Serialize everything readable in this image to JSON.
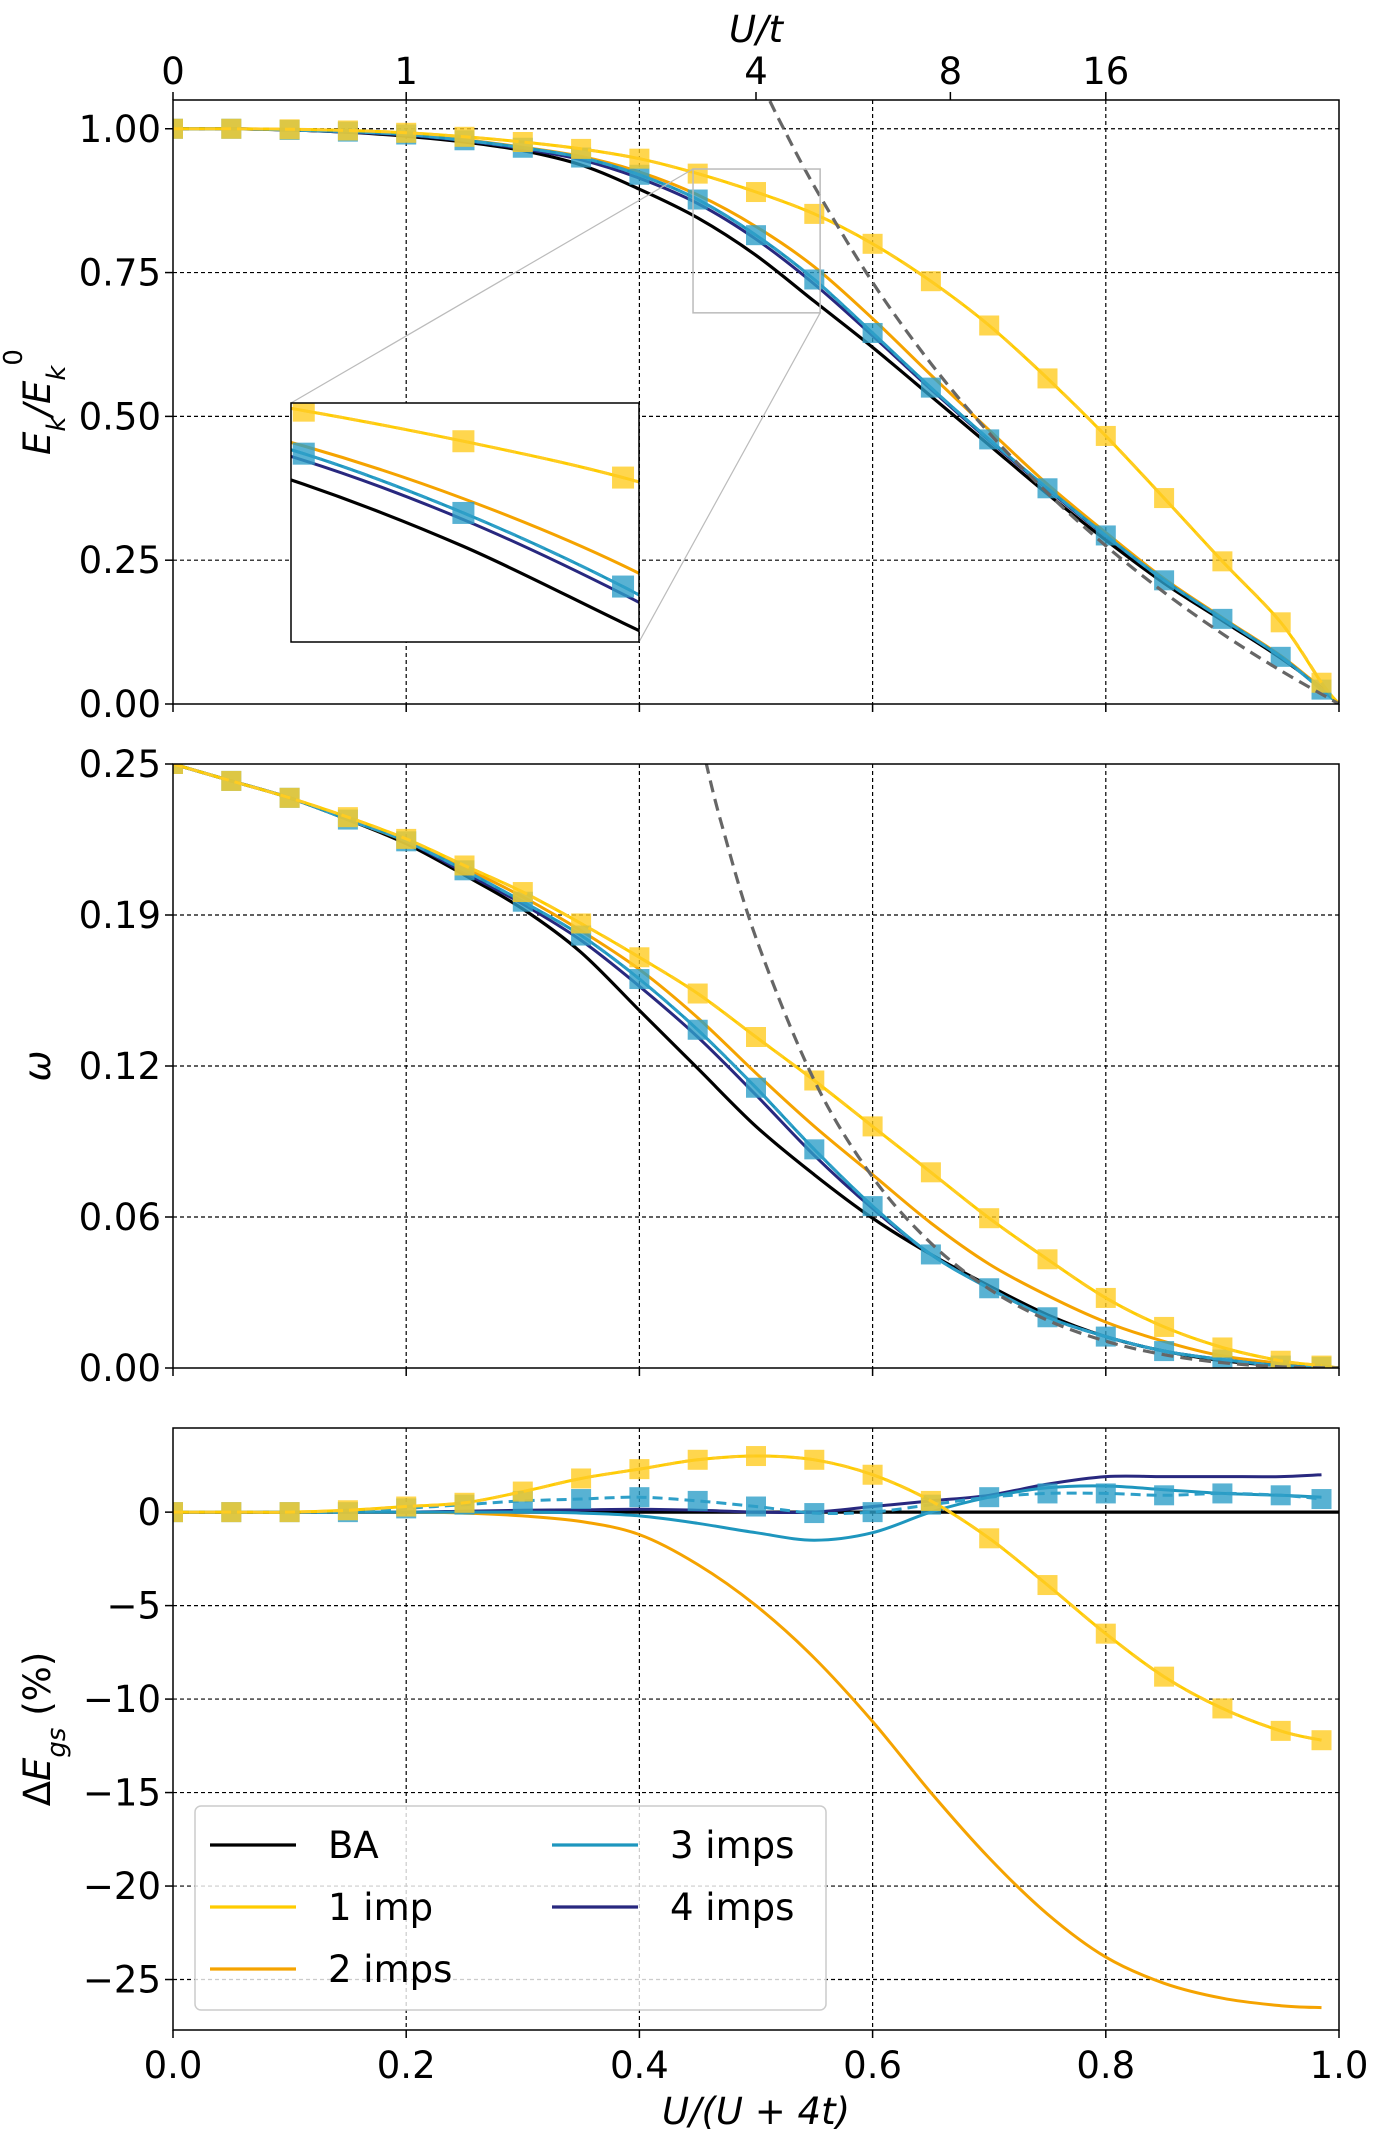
{
  "colors": {
    "BA": "#000000",
    "1 imp": "#FFCC00",
    "2 imps": "#F5A300",
    "3 imps": "#1E96BE",
    "4 imps": "#28287F",
    "marker_yellow": "#FFCC22",
    "marker_teal": "#2E9FC8",
    "asymptote": "#666666"
  },
  "legend": {
    "placement": "lower-left",
    "columns": 2,
    "entries": [
      "BA",
      "1 imp",
      "2 imps",
      "3 imps",
      "4 imps"
    ]
  },
  "top_axis": {
    "label": "U/t",
    "ticks": [
      0,
      0.2,
      0.5,
      0.6667,
      0.8
    ],
    "tick_labels": [
      "0",
      "1",
      "4",
      "8",
      "16"
    ]
  },
  "chart_data": [
    {
      "type": "line",
      "ylabel": "E_k/E_k^0",
      "xlim": [
        0,
        1
      ],
      "ylim": [
        0,
        1.05
      ],
      "grid": true,
      "yticks": [
        0,
        0.25,
        0.5,
        0.75,
        1.0
      ],
      "ytick_labels": [
        "0.00",
        "0.25",
        "0.50",
        "0.75",
        "1.00"
      ],
      "x": [
        0,
        0.05,
        0.1,
        0.15,
        0.2,
        0.25,
        0.3,
        0.35,
        0.4,
        0.45,
        0.5,
        0.55,
        0.6,
        0.65,
        0.7,
        0.75,
        0.8,
        0.85,
        0.9,
        0.95,
        0.985,
        1.0
      ],
      "series": [
        {
          "name": "BA",
          "style": "solid",
          "values": [
            1,
            1,
            0.998,
            0.994,
            0.987,
            0.977,
            0.962,
            0.937,
            0.895,
            0.845,
            0.78,
            0.7,
            0.62,
            0.535,
            0.45,
            0.365,
            0.285,
            0.21,
            0.145,
            0.08,
            0.028,
            0
          ]
        },
        {
          "name": "2 imps",
          "style": "solid",
          "values": [
            1,
            1,
            0.998,
            0.995,
            0.99,
            0.981,
            0.968,
            0.952,
            0.925,
            0.885,
            0.83,
            0.76,
            0.67,
            0.572,
            0.476,
            0.382,
            0.298,
            0.218,
            0.15,
            0.084,
            0.027,
            0
          ]
        },
        {
          "name": "4 imps",
          "style": "solid",
          "values": [
            1,
            1,
            0.998,
            0.994,
            0.989,
            0.979,
            0.965,
            0.946,
            0.914,
            0.87,
            0.808,
            0.73,
            0.64,
            0.547,
            0.458,
            0.373,
            0.292,
            0.215,
            0.148,
            0.082,
            0.025,
            0
          ]
        },
        {
          "name": "3 imps",
          "style": "solid",
          "values": [
            1,
            1,
            0.998,
            0.995,
            0.99,
            0.98,
            0.967,
            0.95,
            0.92,
            0.877,
            0.815,
            0.738,
            0.645,
            0.55,
            0.46,
            0.375,
            0.293,
            0.215,
            0.148,
            0.082,
            0.025,
            0
          ]
        },
        {
          "name": "1 imp",
          "style": "solid",
          "values": [
            1,
            1,
            0.999,
            0.997,
            0.993,
            0.986,
            0.977,
            0.965,
            0.948,
            0.922,
            0.89,
            0.852,
            0.8,
            0.735,
            0.658,
            0.566,
            0.466,
            0.358,
            0.248,
            0.142,
            0.037,
            0
          ]
        },
        {
          "style": "dashed-square",
          "color_key": "marker_teal",
          "values": [
            1,
            1,
            0.998,
            0.995,
            0.99,
            0.98,
            0.967,
            0.95,
            0.92,
            0.877,
            0.815,
            0.738,
            0.645,
            0.55,
            0.46,
            0.375,
            0.293,
            0.215,
            0.148,
            0.082,
            0.025,
            null
          ]
        },
        {
          "style": "dashed-square",
          "color_key": "marker_yellow",
          "values": [
            1,
            1,
            0.999,
            0.997,
            0.993,
            0.986,
            0.977,
            0.965,
            0.948,
            0.922,
            0.89,
            0.852,
            0.8,
            0.735,
            0.658,
            0.566,
            0.466,
            0.358,
            0.248,
            0.142,
            0.037,
            null
          ]
        }
      ],
      "asymptote": {
        "x": [
          0.505,
          0.52,
          0.55,
          0.6,
          0.65,
          0.7,
          0.75,
          0.8,
          0.85,
          0.9,
          0.95,
          1.0
        ],
        "values": [
          1.078,
          1.015,
          0.9,
          0.733,
          0.592,
          0.471,
          0.367,
          0.275,
          0.194,
          0.122,
          0.058,
          0
        ]
      },
      "inset": {
        "xlim": [
          0.446,
          0.555
        ],
        "ylim": [
          0.68,
          0.93
        ]
      }
    },
    {
      "type": "line",
      "ylabel": "ω",
      "xlim": [
        0,
        1
      ],
      "ylim": [
        0,
        0.25
      ],
      "grid": true,
      "yticks": [
        0,
        0.0625,
        0.125,
        0.1875,
        0.25
      ],
      "ytick_labels": [
        "0.00",
        "0.06",
        "0.12",
        "0.19",
        "0.25"
      ],
      "x": [
        0,
        0.05,
        0.1,
        0.15,
        0.2,
        0.25,
        0.3,
        0.35,
        0.4,
        0.45,
        0.5,
        0.55,
        0.6,
        0.65,
        0.7,
        0.75,
        0.8,
        0.85,
        0.9,
        0.95,
        0.985,
        1.0
      ],
      "series": [
        {
          "name": "BA",
          "style": "solid",
          "values": [
            0.25,
            0.243,
            0.236,
            0.227,
            0.217,
            0.204,
            0.19,
            0.172,
            0.148,
            0.124,
            0.1,
            0.08,
            0.062,
            0.047,
            0.034,
            0.022,
            0.013,
            0.007,
            0.003,
            0.001,
            0.0003,
            0
          ]
        },
        {
          "name": "2 imps",
          "style": "solid",
          "values": [
            0.25,
            0.243,
            0.236,
            0.227,
            0.218,
            0.207,
            0.195,
            0.181,
            0.165,
            0.145,
            0.122,
            0.1,
            0.08,
            0.06,
            0.043,
            0.03,
            0.019,
            0.011,
            0.005,
            0.002,
            0.0006,
            0
          ]
        },
        {
          "name": "4 imps",
          "style": "solid",
          "values": [
            0.25,
            0.243,
            0.236,
            0.227,
            0.218,
            0.205,
            0.192,
            0.177,
            0.158,
            0.137,
            0.113,
            0.088,
            0.066,
            0.047,
            0.033,
            0.021,
            0.013,
            0.007,
            0.0035,
            0.001,
            0.0005,
            0
          ]
        },
        {
          "name": "3 imps",
          "style": "solid",
          "values": [
            0.25,
            0.243,
            0.236,
            0.227,
            0.218,
            0.206,
            0.193,
            0.179,
            0.161,
            0.14,
            0.116,
            0.0905,
            0.067,
            0.047,
            0.033,
            0.021,
            0.013,
            0.007,
            0.0035,
            0.001,
            0.0005,
            0
          ]
        },
        {
          "name": "1 imp",
          "style": "solid",
          "values": [
            0.25,
            0.243,
            0.236,
            0.228,
            0.219,
            0.208,
            0.197,
            0.184,
            0.17,
            0.155,
            0.137,
            0.119,
            0.1,
            0.081,
            0.062,
            0.045,
            0.029,
            0.017,
            0.0085,
            0.003,
            0.001,
            0
          ]
        },
        {
          "style": "dashed-square",
          "color_key": "marker_teal",
          "values": [
            0.25,
            0.243,
            0.236,
            0.227,
            0.218,
            0.206,
            0.193,
            0.179,
            0.161,
            0.14,
            0.116,
            0.0905,
            0.067,
            0.047,
            0.033,
            0.021,
            0.013,
            0.007,
            0.0035,
            0.001,
            0.0005,
            null
          ]
        },
        {
          "style": "dashed-square",
          "color_key": "marker_yellow",
          "values": [
            0.25,
            0.243,
            0.236,
            0.228,
            0.219,
            0.208,
            0.197,
            0.184,
            0.17,
            0.155,
            0.137,
            0.119,
            0.1,
            0.081,
            0.062,
            0.045,
            0.029,
            0.017,
            0.0085,
            0.003,
            0.001,
            null
          ]
        }
      ],
      "asymptote": {
        "x": [
          0.457,
          0.47,
          0.5,
          0.55,
          0.6,
          0.65,
          0.7,
          0.75,
          0.8,
          0.85,
          0.9,
          0.95,
          1.0
        ],
        "values": [
          0.2508,
          0.226,
          0.178,
          0.119,
          0.079,
          0.0517,
          0.0327,
          0.0198,
          0.0111,
          0.0055,
          0.0022,
          0.0005,
          0
        ]
      }
    },
    {
      "type": "line",
      "ylabel": "ΔE_gs (%)",
      "xlabel": "U/(U + 4t)",
      "xlim": [
        0,
        1
      ],
      "ylim": [
        -27.7,
        4.5
      ],
      "grid": true,
      "yticks": [
        0,
        -5,
        -10,
        -15,
        -20,
        -25
      ],
      "ytick_labels": [
        "0",
        "−5",
        "−10",
        "−15",
        "−20",
        "−25"
      ],
      "xticks": [
        0,
        0.2,
        0.4,
        0.6,
        0.8,
        1.0
      ],
      "xtick_labels": [
        "0.0",
        "0.2",
        "0.4",
        "0.6",
        "0.8",
        "1.0"
      ],
      "x": [
        0,
        0.05,
        0.1,
        0.15,
        0.2,
        0.25,
        0.3,
        0.35,
        0.4,
        0.45,
        0.5,
        0.55,
        0.6,
        0.65,
        0.7,
        0.75,
        0.8,
        0.85,
        0.9,
        0.95,
        0.985
      ],
      "series": [
        {
          "name": "BA",
          "style": "solid",
          "values": [
            0,
            0,
            0,
            0,
            0,
            0,
            0,
            0,
            0,
            0,
            0,
            0,
            0,
            0,
            0,
            0,
            0,
            0,
            0,
            0,
            0
          ],
          "extend_to_right": true
        },
        {
          "name": "2 imps",
          "style": "solid",
          "values": [
            0,
            0,
            0,
            0,
            0,
            -0.05,
            -0.2,
            -0.5,
            -1.2,
            -2.8,
            -5.0,
            -7.8,
            -11.2,
            -15,
            -18.5,
            -21.5,
            -23.8,
            -25.2,
            -26,
            -26.4,
            -26.5
          ]
        },
        {
          "name": "4 imps",
          "style": "solid",
          "values": [
            0,
            0,
            0,
            0,
            0,
            0.05,
            0.1,
            0.12,
            0.15,
            0.1,
            0,
            0,
            0.3,
            0.6,
            0.9,
            1.5,
            1.9,
            1.9,
            1.9,
            1.9,
            2.0
          ]
        },
        {
          "name": "3 imps",
          "style": "solid",
          "values": [
            0,
            0,
            0,
            0,
            0,
            0,
            0,
            -0.05,
            -0.2,
            -0.6,
            -1.1,
            -1.5,
            -1.1,
            0,
            0.8,
            1.3,
            1.4,
            1.2,
            1.0,
            0.9,
            0.8
          ]
        },
        {
          "name": "1 imp",
          "style": "solid",
          "values": [
            0,
            0,
            0,
            0.1,
            0.3,
            0.5,
            1.1,
            1.8,
            2.3,
            2.8,
            3.0,
            2.8,
            2.0,
            0.6,
            -1.4,
            -3.9,
            -6.5,
            -8.8,
            -10.5,
            -11.7,
            -12.2
          ]
        },
        {
          "style": "dashed-square",
          "color_key": "marker_teal",
          "values": [
            0,
            0,
            0,
            0,
            0.2,
            0.4,
            0.6,
            0.7,
            0.8,
            0.6,
            0.3,
            -0.05,
            0,
            0.4,
            0.8,
            1.0,
            1.0,
            0.9,
            1.0,
            0.9,
            0.7
          ]
        },
        {
          "style": "dashed-square",
          "color_key": "marker_yellow",
          "values": [
            0,
            0,
            0,
            0.1,
            0.3,
            0.5,
            1.1,
            1.8,
            2.3,
            2.8,
            3.0,
            2.8,
            2.0,
            0.6,
            -1.4,
            -3.9,
            -6.5,
            -8.8,
            -10.5,
            -11.7,
            -12.2
          ]
        }
      ]
    }
  ]
}
